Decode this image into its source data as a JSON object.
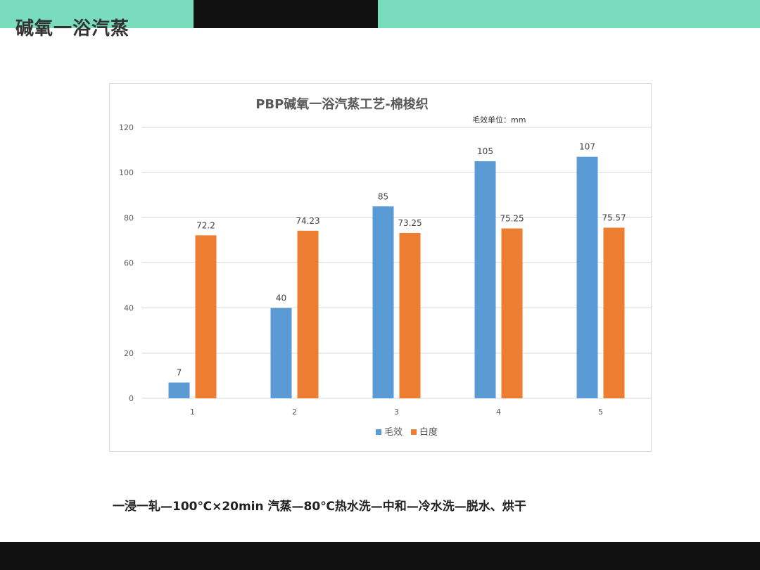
{
  "slide": {
    "title": "碱氧一浴汽蒸",
    "caption": "一浸一轧—100℃×20min 汽蒸—80℃热水洗—中和—冷水洗—脱水、烘干"
  },
  "colors": {
    "accent_teal": "#79dcbd",
    "bar_dark": "#111111",
    "series_blue": "#5b9bd5",
    "series_orange": "#ed7d31"
  },
  "chart_data": {
    "type": "bar",
    "title": "PBP碱氧一浴汽蒸工艺-棉梭织",
    "subtitle": "毛效单位：mm",
    "categories": [
      "1",
      "2",
      "3",
      "4",
      "5"
    ],
    "series": [
      {
        "name": "毛效",
        "values": [
          7,
          40,
          85,
          105,
          107
        ],
        "labels": [
          "7",
          "40",
          "85",
          "105",
          "107"
        ],
        "color": "#5b9bd5"
      },
      {
        "name": "白度",
        "values": [
          72.2,
          74.23,
          73.25,
          75.25,
          75.57
        ],
        "labels": [
          "72.2",
          "74.23",
          "73.25",
          "75.25",
          "75.57"
        ],
        "color": "#ed7d31"
      }
    ],
    "ylim": [
      0,
      120
    ],
    "yticks": [
      "0",
      "20",
      "40",
      "60",
      "80",
      "100",
      "120"
    ],
    "grid": true,
    "legend_position": "bottom"
  }
}
